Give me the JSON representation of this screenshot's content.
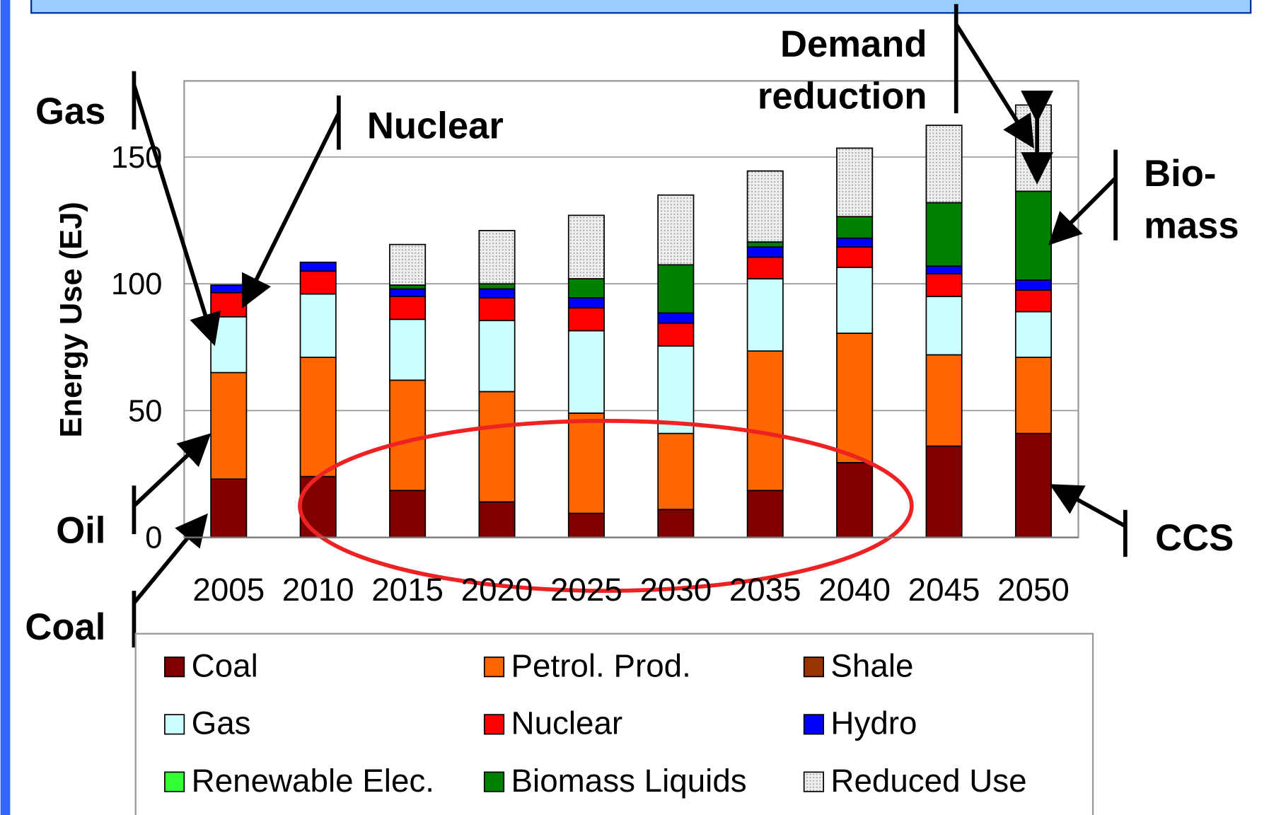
{
  "chart_data": {
    "type": "stacked_bar",
    "y_label": "Energy Use (EJ)",
    "categories": [
      "2005",
      "2010",
      "2015",
      "2020",
      "2025",
      "2030",
      "2035",
      "2040",
      "2045",
      "2050"
    ],
    "ylim": [
      0,
      180
    ],
    "yticks": [
      0,
      50,
      100,
      150
    ],
    "grid": true,
    "series": [
      {
        "name": "Coal",
        "color": "#800000",
        "values": [
          23,
          24,
          18.5,
          14,
          9.5,
          11,
          18.5,
          29.5,
          36,
          41
        ]
      },
      {
        "name": "Shale",
        "color": "#993300",
        "values": [
          0,
          0,
          0,
          0,
          0,
          0,
          0,
          0,
          0,
          0
        ]
      },
      {
        "name": "Petrol. Prod.",
        "color": "#ff6600",
        "values": [
          42,
          47,
          43.5,
          43.5,
          39.5,
          30,
          55,
          51,
          36,
          30
        ]
      },
      {
        "name": "Gas",
        "color": "#ccffff",
        "values": [
          22,
          25,
          24,
          28,
          32.5,
          34.5,
          28.5,
          26,
          23,
          18
        ]
      },
      {
        "name": "Nuclear",
        "color": "#ff0000",
        "values": [
          9.5,
          9,
          9,
          9,
          9,
          9,
          8.5,
          8,
          9,
          8.5
        ]
      },
      {
        "name": "Hydro",
        "color": "#0000ff",
        "values": [
          3,
          3.5,
          3,
          3.5,
          4,
          4,
          4,
          3.5,
          3,
          4
        ]
      },
      {
        "name": "Renewable Elec.",
        "color": "#33ff33",
        "values": [
          0,
          0,
          0,
          0,
          0,
          0,
          0,
          0,
          0,
          0
        ]
      },
      {
        "name": "Biomass Liquids",
        "color": "#008000",
        "values": [
          0,
          0,
          1.5,
          2,
          7.5,
          19,
          2,
          8.5,
          25,
          35
        ]
      },
      {
        "name": "Reduced Use",
        "color": "#e4e4e4",
        "values": [
          0,
          0,
          16,
          21,
          25,
          27.5,
          28,
          27,
          30.5,
          34
        ]
      }
    ],
    "annotations": [
      [
        "Gas"
      ],
      [
        "Nuclear"
      ],
      [
        "Demand",
        "reduction"
      ],
      [
        "Bio-",
        "mass"
      ],
      [
        "Oil"
      ],
      [
        "Coal"
      ],
      [
        "CCS"
      ]
    ]
  }
}
